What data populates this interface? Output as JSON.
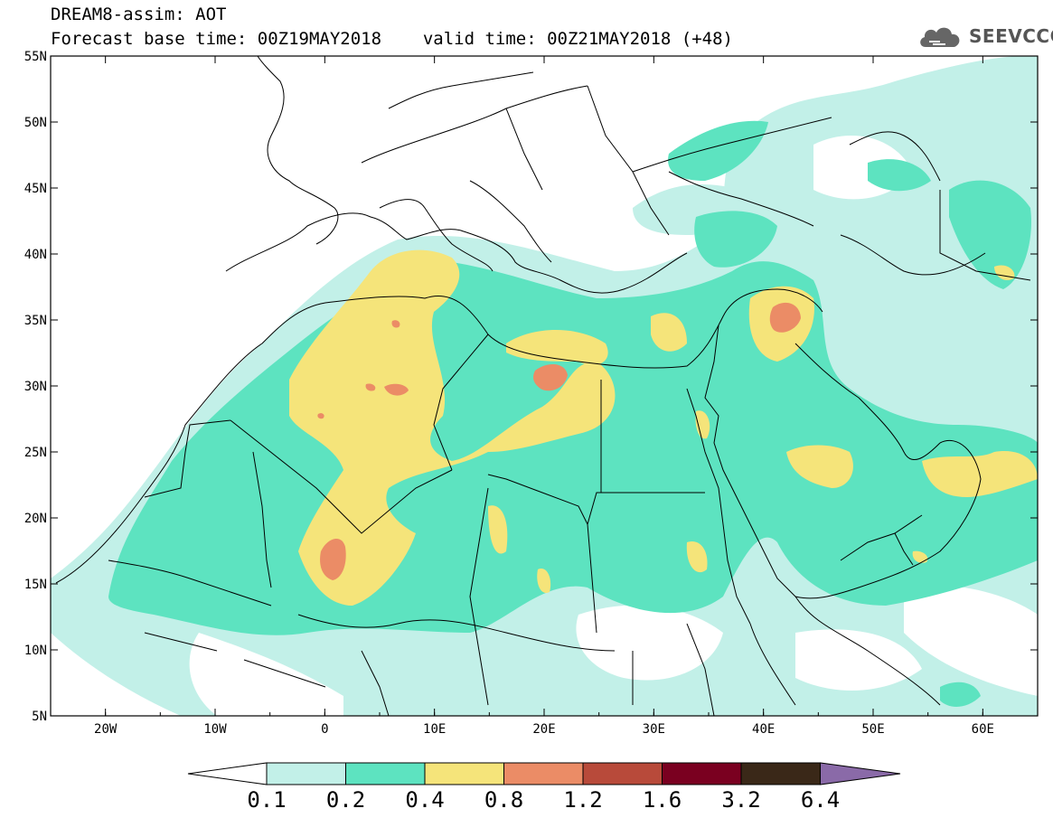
{
  "title": {
    "line1": "DREAM8-assim: AOT",
    "base_time": "Forecast base time: 00Z19MAY2018",
    "valid_time": "valid time: 00Z21MAY2018 (+48)"
  },
  "logo": {
    "text": "SEEVCCC",
    "icon": "cloud-icon"
  },
  "map": {
    "region": "North Africa, Middle East and Europe",
    "lat_range": [
      5,
      55
    ],
    "lon_range": [
      -25,
      65
    ],
    "lat_labels": [
      "55N",
      "50N",
      "45N",
      "40N",
      "35N",
      "30N",
      "25N",
      "20N",
      "15N",
      "10N",
      "5N"
    ],
    "lon_labels": [
      "20W",
      "10W",
      "0",
      "10E",
      "20E",
      "30E",
      "40E",
      "50E",
      "60E"
    ]
  },
  "colorbar": {
    "labels": [
      "0.1",
      "0.2",
      "0.4",
      "0.8",
      "1.2",
      "1.6",
      "3.2",
      "6.4"
    ],
    "colors": [
      "#ffffff",
      "#c2f0e8",
      "#5de3c0",
      "#f5e47a",
      "#eb8c66",
      "#b84a3a",
      "#7a0020",
      "#3a2818",
      "#8a6aa8"
    ]
  },
  "legend_colors": {
    "lowest": "#c2f0e8",
    "low": "#5de3c0",
    "mid": "#f5e47a",
    "high": "#eb8c66",
    "higher": "#b84a3a"
  }
}
